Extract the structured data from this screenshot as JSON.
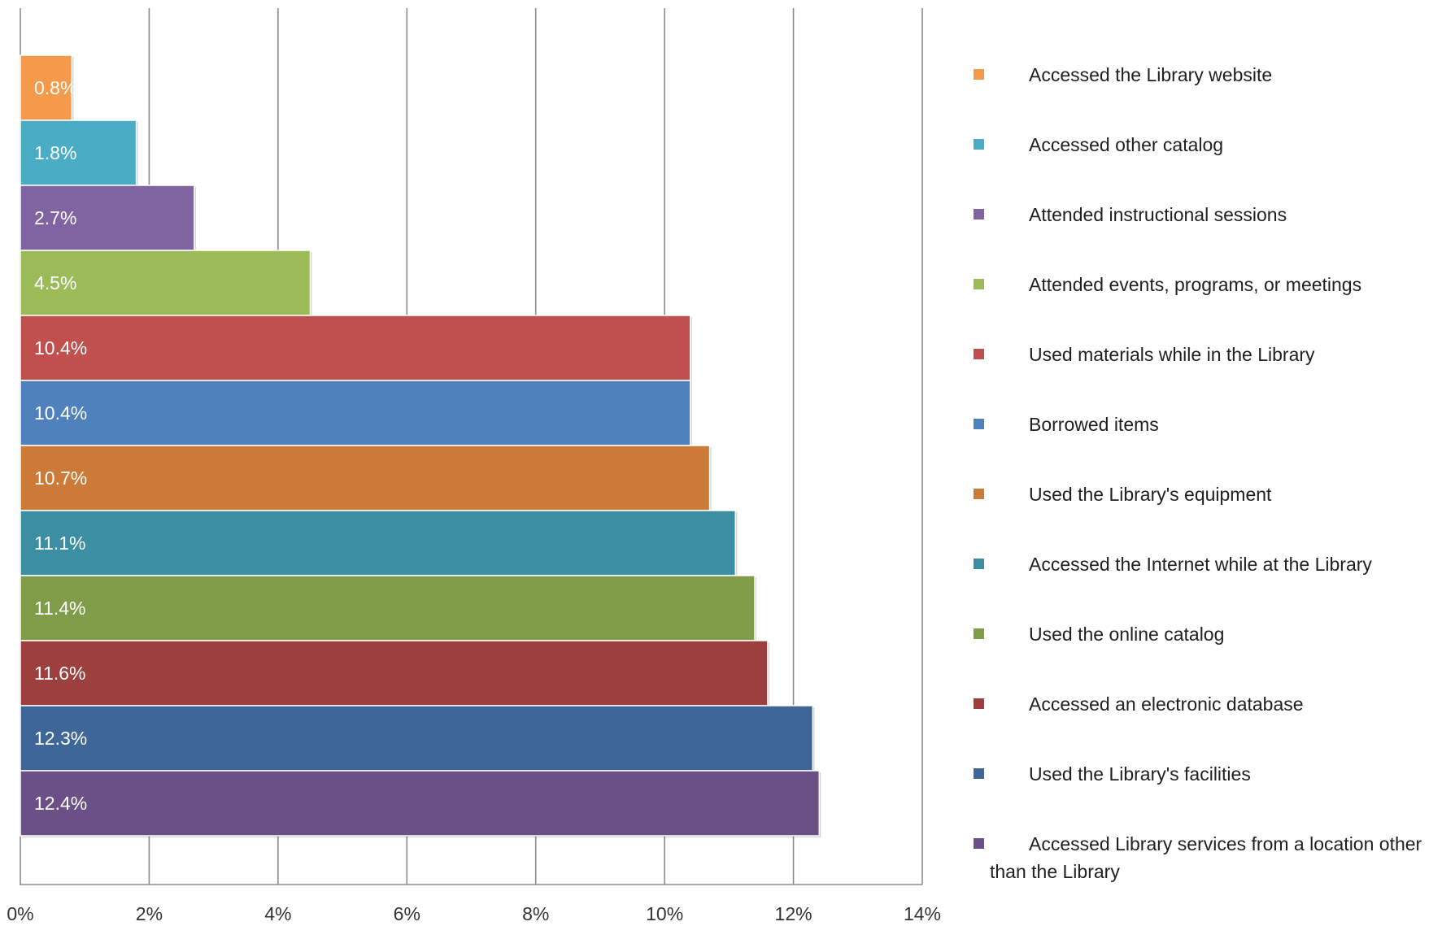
{
  "chart_data": {
    "type": "bar",
    "orientation": "horizontal",
    "title": "",
    "xlabel": "",
    "ylabel": "",
    "xlim": [
      0,
      14
    ],
    "x_ticks": [
      "0%",
      "2%",
      "4%",
      "6%",
      "8%",
      "10%",
      "12%",
      "14%"
    ],
    "grid": "vertical",
    "legend_position": "right",
    "series": [
      {
        "name": "Accessed the Library website",
        "value": 0.8,
        "label": "0.8%",
        "color": "#F59A4A"
      },
      {
        "name": "Accessed other catalog",
        "value": 1.8,
        "label": "1.8%",
        "color": "#4BACC6"
      },
      {
        "name": "Attended instructional sessions",
        "value": 2.7,
        "label": "2.7%",
        "color": "#8064A2"
      },
      {
        "name": "Attended events, programs, or meetings",
        "value": 4.5,
        "label": "4.5%",
        "color": "#9BBB59"
      },
      {
        "name": "Used materials while in the Library",
        "value": 10.4,
        "label": "10.4%",
        "color": "#C0504D"
      },
      {
        "name": "Borrowed items",
        "value": 10.4,
        "label": "10.4%",
        "color": "#4F81BD"
      },
      {
        "name": "Used the Library's equipment",
        "value": 10.7,
        "label": "10.7%",
        "color": "#CC7A37"
      },
      {
        "name": "Accessed the Internet while at the Library",
        "value": 11.1,
        "label": "11.1%",
        "color": "#3C8EA2"
      },
      {
        "name": "Used the online catalog",
        "value": 11.4,
        "label": "11.4%",
        "color": "#7F9D48"
      },
      {
        "name": "Accessed an electronic database",
        "value": 11.6,
        "label": "11.6%",
        "color": "#9C3F3D"
      },
      {
        "name": "Used the Library's facilities",
        "value": 12.3,
        "label": "12.3%",
        "color": "#3E6798"
      },
      {
        "name": "Accessed Library services from a location other than the Library",
        "value": 12.4,
        "label": "12.4%",
        "color": "#6A5087"
      }
    ]
  }
}
